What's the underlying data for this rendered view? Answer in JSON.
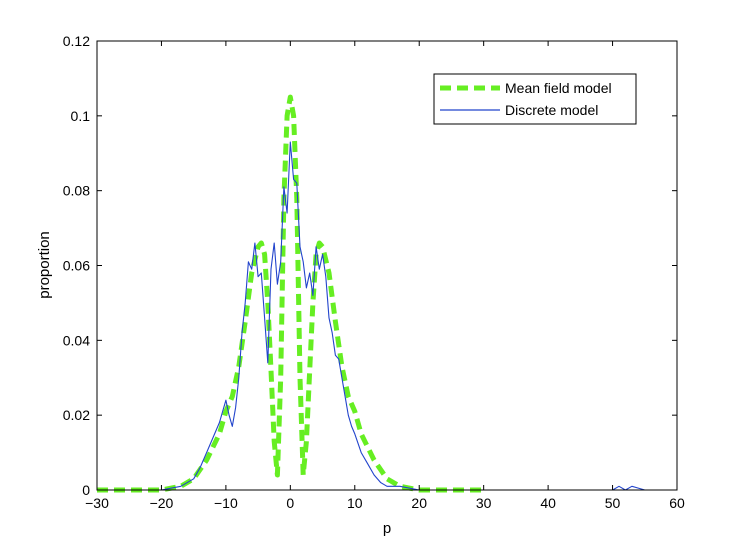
{
  "chart_data": {
    "type": "line",
    "xlabel": "p",
    "ylabel": "proportion",
    "xlim": [
      -30,
      60
    ],
    "ylim": [
      0,
      0.12
    ],
    "xticks": [
      -30,
      -20,
      -10,
      0,
      10,
      20,
      30,
      40,
      50,
      60
    ],
    "yticks": [
      0,
      0.02,
      0.04,
      0.06,
      0.08,
      0.1,
      0.12
    ],
    "xtick_labels": [
      "−30",
      "−20",
      "−10",
      "0",
      "10",
      "20",
      "30",
      "40",
      "50",
      "60"
    ],
    "ytick_labels": [
      "0",
      "0.02",
      "0.04",
      "0.06",
      "0.08",
      "0.1",
      "0.12"
    ],
    "grid": false,
    "legend": {
      "position": "top-right"
    },
    "series": [
      {
        "name": "Mean field model",
        "style": "dashed",
        "color": "#66ee22",
        "x": [
          -30,
          -25,
          -20,
          -17,
          -15,
          -13,
          -11,
          -10,
          -9,
          -8,
          -7,
          -6,
          -5,
          -4.5,
          -4,
          -3.5,
          -3,
          -2.5,
          -2,
          -1.5,
          -1,
          -0.5,
          0,
          0.5,
          1,
          1.5,
          2,
          2.5,
          3,
          3.5,
          4,
          4.5,
          5,
          6,
          7,
          8,
          9,
          10,
          11,
          13,
          15,
          17,
          20,
          25,
          30
        ],
        "y": [
          0,
          0,
          0,
          0.001,
          0.003,
          0.008,
          0.015,
          0.021,
          0.025,
          0.033,
          0.045,
          0.058,
          0.065,
          0.066,
          0.063,
          0.05,
          0.032,
          0.013,
          0.004,
          0.03,
          0.078,
          0.1,
          0.105,
          0.1,
          0.078,
          0.03,
          0.004,
          0.013,
          0.032,
          0.05,
          0.063,
          0.066,
          0.065,
          0.058,
          0.045,
          0.033,
          0.025,
          0.021,
          0.015,
          0.008,
          0.003,
          0.001,
          0,
          0,
          0
        ]
      },
      {
        "name": "Discrete model",
        "style": "solid",
        "color": "#2244cc",
        "x": [
          -30,
          -25,
          -20,
          -17,
          -15,
          -14,
          -13,
          -12,
          -11,
          -10,
          -9.5,
          -9,
          -8.5,
          -8,
          -7.5,
          -7,
          -6.5,
          -6,
          -5.5,
          -5,
          -4.5,
          -4,
          -3.5,
          -3,
          -2.5,
          -2,
          -1.5,
          -1,
          -0.5,
          0,
          0.5,
          1,
          1.5,
          2,
          2.5,
          3,
          3.5,
          4,
          4.5,
          5,
          5.5,
          6,
          6.5,
          7,
          7.5,
          8,
          8.5,
          9,
          9.5,
          10,
          11,
          12,
          13,
          14,
          15,
          17,
          20,
          25,
          30,
          40,
          50,
          51,
          52,
          53,
          55,
          60
        ],
        "y": [
          0,
          0,
          0,
          0.001,
          0.003,
          0.006,
          0.01,
          0.014,
          0.018,
          0.024,
          0.02,
          0.017,
          0.022,
          0.03,
          0.042,
          0.05,
          0.061,
          0.059,
          0.066,
          0.057,
          0.058,
          0.046,
          0.034,
          0.059,
          0.066,
          0.055,
          0.061,
          0.081,
          0.074,
          0.093,
          0.083,
          0.082,
          0.065,
          0.061,
          0.054,
          0.058,
          0.052,
          0.065,
          0.059,
          0.063,
          0.057,
          0.046,
          0.042,
          0.036,
          0.035,
          0.03,
          0.025,
          0.02,
          0.017,
          0.015,
          0.01,
          0.007,
          0.004,
          0.002,
          0.001,
          0.001,
          0,
          0,
          0,
          0,
          0,
          0.001,
          0,
          0.001,
          0,
          0
        ]
      }
    ]
  }
}
